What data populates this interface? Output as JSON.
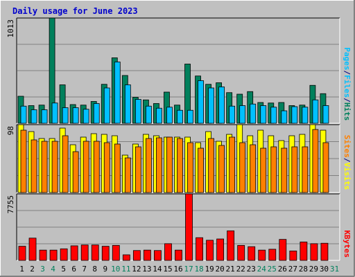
{
  "chart_data": {
    "type": "bar",
    "title": "Daily usage for June 2023",
    "colors": {
      "background": "#c0c0c0",
      "title": "#0000cc",
      "hits": "#00805c",
      "files": "#00c0ff",
      "pages": "#00c0ff",
      "visits": "#ffff00",
      "sites": "#ff8000",
      "kbytes": "#ff0000",
      "weekend_day_label": "#00805c",
      "weekday_label": "#000000",
      "gridline": "#808080"
    },
    "days": [
      "1",
      "2",
      "3",
      "4",
      "5",
      "6",
      "7",
      "8",
      "9",
      "10",
      "11",
      "12",
      "13",
      "14",
      "15",
      "16",
      "17",
      "18",
      "19",
      "20",
      "21",
      "22",
      "23",
      "24",
      "25",
      "26",
      "27",
      "28",
      "29",
      "30",
      "31"
    ],
    "weekend_days": [
      "3",
      "4",
      "10",
      "11",
      "17",
      "18",
      "24",
      "25",
      "31"
    ],
    "panels": [
      {
        "ymax_label": "1013",
        "ymax": 1013,
        "side_label": [
          "Hits",
          "/",
          "Files",
          "/",
          "Pages"
        ],
        "side_label_colors": [
          "#00805c",
          "#000080",
          "#00c0ff",
          "#000080",
          "#00c0ff"
        ],
        "series": [
          {
            "key": "hits",
            "values": [
              260,
              170,
              175,
              1013,
              370,
              180,
              175,
              210,
              375,
              630,
              460,
              250,
              225,
              190,
              300,
              175,
              570,
              455,
              375,
              390,
              295,
              280,
              305,
              200,
              195,
              200,
              170,
              175,
              365,
              285,
              0
            ]
          },
          {
            "key": "files",
            "values": [
              165,
              130,
              130,
              195,
              150,
              150,
              135,
              190,
              340,
              590,
              370,
              230,
              165,
              145,
              155,
              125,
              125,
              410,
              340,
              350,
              165,
              170,
              185,
              170,
              155,
              120,
              160,
              155,
              225,
              170,
              0
            ]
          },
          {
            "key": "pages",
            "values": [
              165,
              130,
              130,
              195,
              150,
              150,
              135,
              190,
              340,
              590,
              370,
              230,
              165,
              145,
              155,
              125,
              125,
              410,
              340,
              350,
              165,
              170,
              185,
              170,
              155,
              120,
              160,
              155,
              225,
              170,
              0
            ]
          }
        ]
      },
      {
        "ymax_label": "98",
        "ymax": 98,
        "side_label": [
          "Visits",
          "/",
          "Sites"
        ],
        "side_label_colors": [
          "#ffff00",
          "#000080",
          "#ff8000"
        ],
        "series": [
          {
            "key": "visits",
            "values": [
              98,
              88,
              78,
              78,
              93,
              69,
              80,
              85,
              84,
              82,
              54,
              70,
              84,
              82,
              80,
              80,
              80,
              72,
              88,
              74,
              84,
              98,
              82,
              90,
              82,
              75,
              82,
              84,
              98,
              90,
              0
            ]
          },
          {
            "key": "sites",
            "values": [
              90,
              76,
              74,
              74,
              82,
              59,
              74,
              74,
              72,
              70,
              50,
              66,
              78,
              79,
              80,
              78,
              72,
              64,
              78,
              68,
              80,
              72,
              69,
              64,
              66,
              64,
              66,
              66,
              91,
              72,
              0
            ]
          }
        ]
      },
      {
        "ymax_label": "7755",
        "ymax": 7755,
        "side_label": [
          "KBytes"
        ],
        "side_label_colors": [
          "#ff0000"
        ],
        "series": [
          {
            "key": "kbytes",
            "values": [
              1650,
              2600,
              1200,
              1200,
              1350,
              1700,
              1800,
              1800,
              1650,
              1750,
              650,
              1150,
              1200,
              1150,
              1950,
              1200,
              7755,
              2650,
              2350,
              2500,
              3450,
              1750,
              1600,
              1200,
              1300,
              2450,
              1100,
              2150,
              1950,
              2000,
              0
            ]
          }
        ]
      }
    ]
  }
}
